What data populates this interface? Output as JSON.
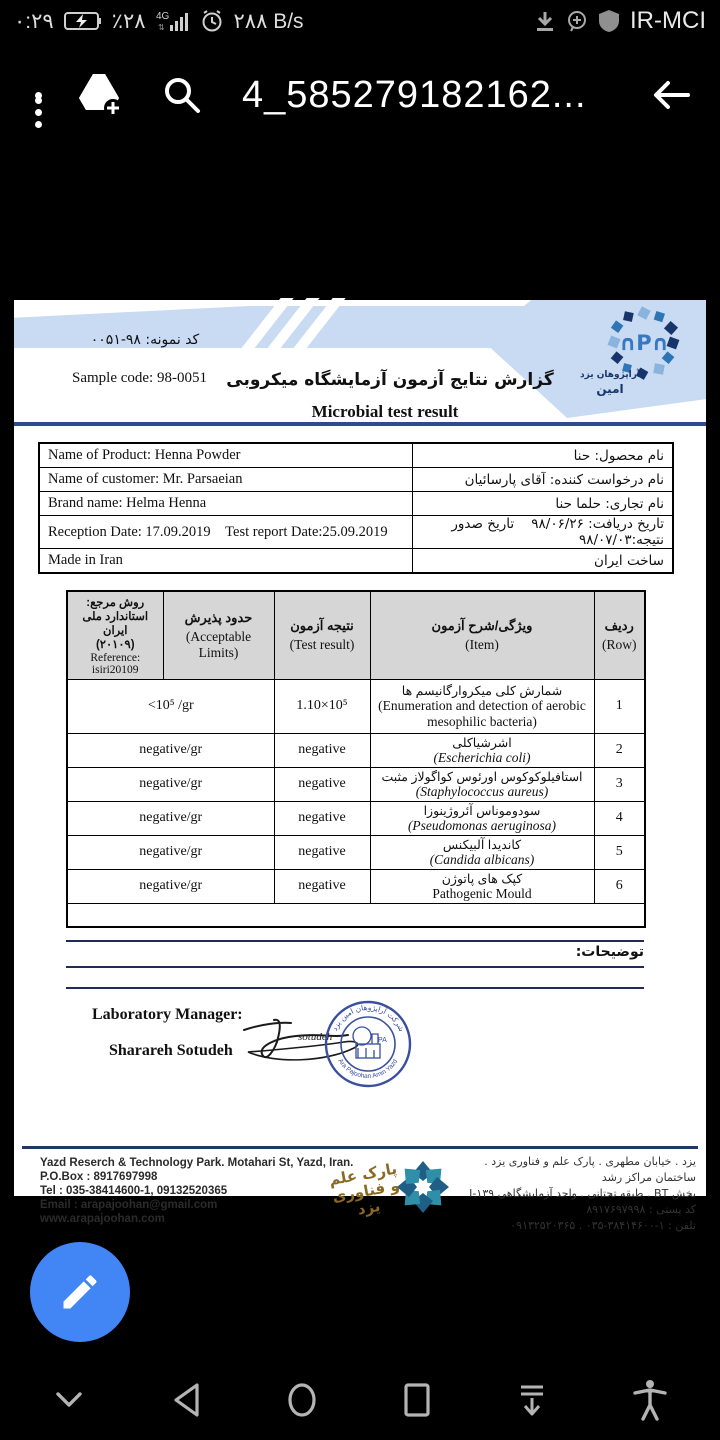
{
  "status_bar": {
    "time": "٠:٢٩",
    "battery_percent": "٪٢٨",
    "network_type": "4G",
    "data_rate": "٢٨٨ B/s",
    "carrier": "IR-MCI"
  },
  "toolbar": {
    "title": "4_585279182162..."
  },
  "document": {
    "logo": {
      "letters": "∩P∩",
      "line1": "آراپژوهان یزد",
      "line2": "امین"
    },
    "sample_code_fa": "کد نمونه: ۹۸-۰۰۵۱",
    "sample_code_en": "Sample code: 98-0051",
    "title_fa": "گزارش نتایج آزمون آزمایشگاه میکروبی",
    "title_en": "Microbial test result",
    "info_table": [
      {
        "en": "Name of Product: Henna Powder",
        "fa": "نام محصول: حنا"
      },
      {
        "en": "Name of customer: Mr. Parsaeian",
        "fa": "نام درخواست کننده: آقای پارسائیان"
      },
      {
        "en": "Brand name: Helma  Henna",
        "fa": "نام تجاری: حلما حنا"
      },
      {
        "en": "Reception Date: 17.09.2019    Test report Date:25.09.2019",
        "fa": "تاریخ دریافت: ۹۸/۰۶/۲۶    تاریخ صدور نتیجه:۹۸/۰۷/۰۳"
      },
      {
        "en": "Made in Iran",
        "fa": "ساخت ایران"
      }
    ],
    "results_table": {
      "header": {
        "reference_fa": "روش مرجع:",
        "reference_fa2": "استاندارد ملی ایران",
        "reference_fa3": "(۲۰۱۰۹)",
        "reference_en": "Reference:",
        "reference_en2": "isiri20109",
        "limits_fa": "حدود پذیرش",
        "limits_en": "(Acceptable Limits)",
        "result_fa": "نتیجه آزمون",
        "result_en": "(Test result)",
        "item_fa": "ویژگی/شرح آزمون",
        "item_en": "(Item)",
        "row_fa": "ردیف",
        "row_en": "(Row)"
      },
      "rows": [
        {
          "row": "1",
          "item_fa": "شمارش کلی میکروارگانیسم ها",
          "item_en": "(Enumeration and detection of aerobic mesophilic bacteria)",
          "item_en_italic": false,
          "result": "1.10×10⁵",
          "limit": "<10⁵ /gr"
        },
        {
          "row": "2",
          "item_fa": "اشرشیاکلی",
          "item_en": "(Escherichia coli)",
          "item_en_italic": true,
          "result": "negative",
          "limit": "negative/gr"
        },
        {
          "row": "3",
          "item_fa": "استافیلوکوکوس اورئوس کواگولاز مثبت",
          "item_en": "(Staphylococcus aureus)",
          "item_en_italic": true,
          "result": "negative",
          "limit": "negative/gr"
        },
        {
          "row": "4",
          "item_fa": "سودوموناس آئروژینوزا",
          "item_en": "(Pseudomonas aeruginosa)",
          "item_en_italic": true,
          "result": "negative",
          "limit": "negative/gr"
        },
        {
          "row": "5",
          "item_fa": "کاندیدا آلبیکنس",
          "item_en": "(Candida albicans)",
          "item_en_italic": true,
          "result": "negative",
          "limit": "negative/gr"
        },
        {
          "row": "6",
          "item_fa": "کپک های پاتوژن",
          "item_en": "Pathogenic Mould",
          "item_en_italic": false,
          "result": "negative",
          "limit": "negative/gr"
        }
      ]
    },
    "notes_label": "توضیحات:",
    "signature": {
      "role": "Laboratory Manager:",
      "name": "Sharareh Sotudeh"
    },
    "stamp": {
      "text_fa": "شرکت آراپژوهان امین یزد",
      "text_en": "Ara Pajoohan  Amin Yazd"
    },
    "footer": {
      "en_lines": [
        "Yazd Reserch & Technology Park. Motahari St, Yazd, Iran.",
        "P.O.Box : 8917697998",
        "Tel : 035-38414600-1, 09132520365",
        "Email : arapajoohan@gmail.com",
        "www.arapajoohan.com"
      ],
      "fa_lines": [
        "یزد . خیابان مطهری . پارک علم و فناوری یزد . ساختمان مراکز رشد",
        "بخش BT . طبقه تحتانی . واحد آزمایشگاهی ۱۳۹-I",
        "کد پستی : ۸۹۱۷۶۹۷۹۹۸",
        "تلفن : ۱-۳۸۴۱۴۶۰۰-۰۳۵ . ۰۹۱۳۲۵۲۰۳۶۵"
      ],
      "calligraphy": "پارک علم و فناوری یزد"
    }
  },
  "colors": {
    "accent_banner": "#c9dbf2",
    "rule_navy": "#2c4c8e",
    "table_header_gray": "#d6d6d6",
    "stamp_blue": "#3a4fa0",
    "fab_blue": "#4285f4",
    "footer_navy": "#1f3864"
  }
}
